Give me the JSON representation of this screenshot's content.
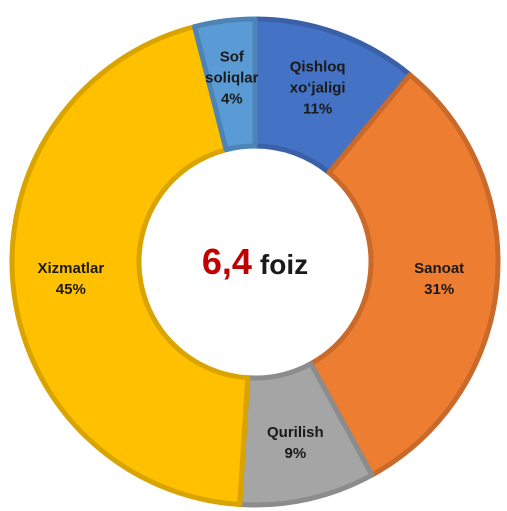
{
  "chart_data": {
    "type": "donut",
    "categories": [
      "Qishloq xo‘jaligi",
      "Sanoat",
      "Qurilish",
      "Xizmatlar",
      "Sof soliqlar"
    ],
    "values": [
      11,
      31,
      9,
      45,
      4
    ],
    "value_labels": [
      "11%",
      "31%",
      "9%",
      "45%",
      "4%"
    ],
    "colors": [
      "#4472c4",
      "#ed7d31",
      "#a5a5a5",
      "#ffc000",
      "#5b9bd5"
    ],
    "center_value": "6,4",
    "center_unit": "foiz"
  }
}
